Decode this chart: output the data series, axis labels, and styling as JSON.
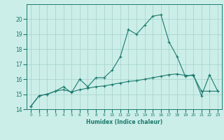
{
  "title": "",
  "xlabel": "Humidex (Indice chaleur)",
  "ylabel": "",
  "bg_color": "#cceee8",
  "grid_color": "#aad4ce",
  "line_color": "#1a7a6e",
  "x_values": [
    0,
    1,
    2,
    3,
    4,
    5,
    6,
    7,
    8,
    9,
    10,
    11,
    12,
    13,
    14,
    15,
    16,
    17,
    18,
    19,
    20,
    21,
    22,
    23
  ],
  "y_line1": [
    14.2,
    14.9,
    15.0,
    15.2,
    15.5,
    15.1,
    16.0,
    15.5,
    16.1,
    16.1,
    16.6,
    17.5,
    19.3,
    19.0,
    19.6,
    20.2,
    20.3,
    18.5,
    17.5,
    16.2,
    16.3,
    14.9,
    16.3,
    15.2
  ],
  "y_line2": [
    14.2,
    14.9,
    15.0,
    15.2,
    15.3,
    15.15,
    15.3,
    15.4,
    15.5,
    15.55,
    15.65,
    15.75,
    15.85,
    15.9,
    16.0,
    16.1,
    16.2,
    16.3,
    16.35,
    16.25,
    16.25,
    15.2,
    15.2,
    15.2
  ],
  "ylim": [
    14,
    21
  ],
  "xlim": [
    -0.5,
    23.5
  ],
  "yticks": [
    14,
    15,
    16,
    17,
    18,
    19,
    20
  ],
  "xtick_labels": [
    "0",
    "1",
    "2",
    "3",
    "4",
    "5",
    "6",
    "7",
    "8",
    "9",
    "10",
    "11",
    "12",
    "13",
    "14",
    "15",
    "16",
    "17",
    "18",
    "19",
    "20",
    "21",
    "22",
    "23"
  ]
}
